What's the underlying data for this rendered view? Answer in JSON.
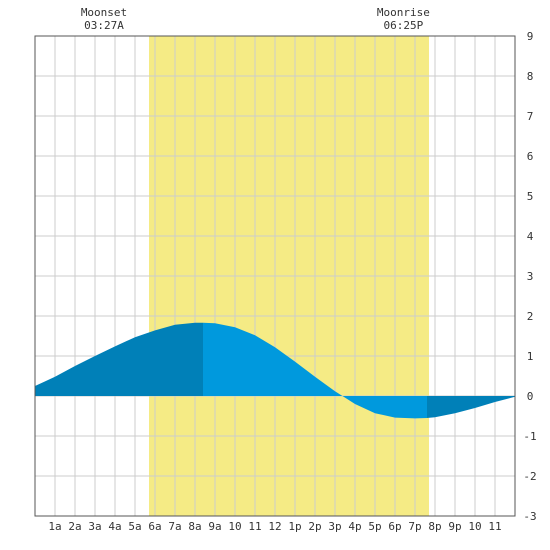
{
  "chart_data": {
    "type": "area",
    "title": "",
    "xlabel": "",
    "ylabel": "",
    "xlim": [
      0,
      24
    ],
    "ylim": [
      -3,
      9
    ],
    "grid": true,
    "x_ticks": [
      {
        "x": 1,
        "label": "1a"
      },
      {
        "x": 2,
        "label": "2a"
      },
      {
        "x": 3,
        "label": "3a"
      },
      {
        "x": 4,
        "label": "4a"
      },
      {
        "x": 5,
        "label": "5a"
      },
      {
        "x": 6,
        "label": "6a"
      },
      {
        "x": 7,
        "label": "7a"
      },
      {
        "x": 8,
        "label": "8a"
      },
      {
        "x": 9,
        "label": "9a"
      },
      {
        "x": 10,
        "label": "10"
      },
      {
        "x": 11,
        "label": "11"
      },
      {
        "x": 12,
        "label": "12"
      },
      {
        "x": 13,
        "label": "1p"
      },
      {
        "x": 14,
        "label": "2p"
      },
      {
        "x": 15,
        "label": "3p"
      },
      {
        "x": 16,
        "label": "4p"
      },
      {
        "x": 17,
        "label": "5p"
      },
      {
        "x": 18,
        "label": "6p"
      },
      {
        "x": 19,
        "label": "7p"
      },
      {
        "x": 20,
        "label": "8p"
      },
      {
        "x": 21,
        "label": "9p"
      },
      {
        "x": 22,
        "label": "10"
      },
      {
        "x": 23,
        "label": "11"
      }
    ],
    "y_ticks": [
      -3,
      -2,
      -1,
      0,
      1,
      2,
      3,
      4,
      5,
      6,
      7,
      8,
      9
    ],
    "daylight": {
      "start": 5.7,
      "end": 19.7
    },
    "series": [
      {
        "x": [
          0,
          1,
          2,
          3,
          4,
          5,
          6,
          7,
          8,
          8.4,
          9,
          10,
          11,
          12,
          13,
          14,
          15,
          16,
          17,
          18,
          19,
          19.6,
          20,
          21,
          22,
          23,
          24
        ],
        "values": [
          0.25,
          0.48,
          0.75,
          1.0,
          1.24,
          1.47,
          1.64,
          1.78,
          1.83,
          1.83,
          1.82,
          1.72,
          1.52,
          1.22,
          0.86,
          0.48,
          0.12,
          -0.2,
          -0.43,
          -0.54,
          -0.56,
          -0.55,
          -0.53,
          -0.43,
          -0.3,
          -0.15,
          -0.02
        ]
      }
    ],
    "tide_phases": [
      {
        "start": 0,
        "end": 8.4,
        "color": "#0080b8"
      },
      {
        "start": 8.4,
        "end": 19.6,
        "color": "#0099dd"
      },
      {
        "start": 19.6,
        "end": 24,
        "color": "#0080b8"
      }
    ],
    "annotations": [
      {
        "x": 3.45,
        "line1": "Moonset",
        "line2": "03:27A"
      },
      {
        "x": 18.42,
        "line1": "Moonrise",
        "line2": "06:25P"
      }
    ],
    "colors": {
      "daylight": "#f5eb85",
      "grid": "#cccccc",
      "axis": "#555555",
      "text": "#333333"
    }
  }
}
